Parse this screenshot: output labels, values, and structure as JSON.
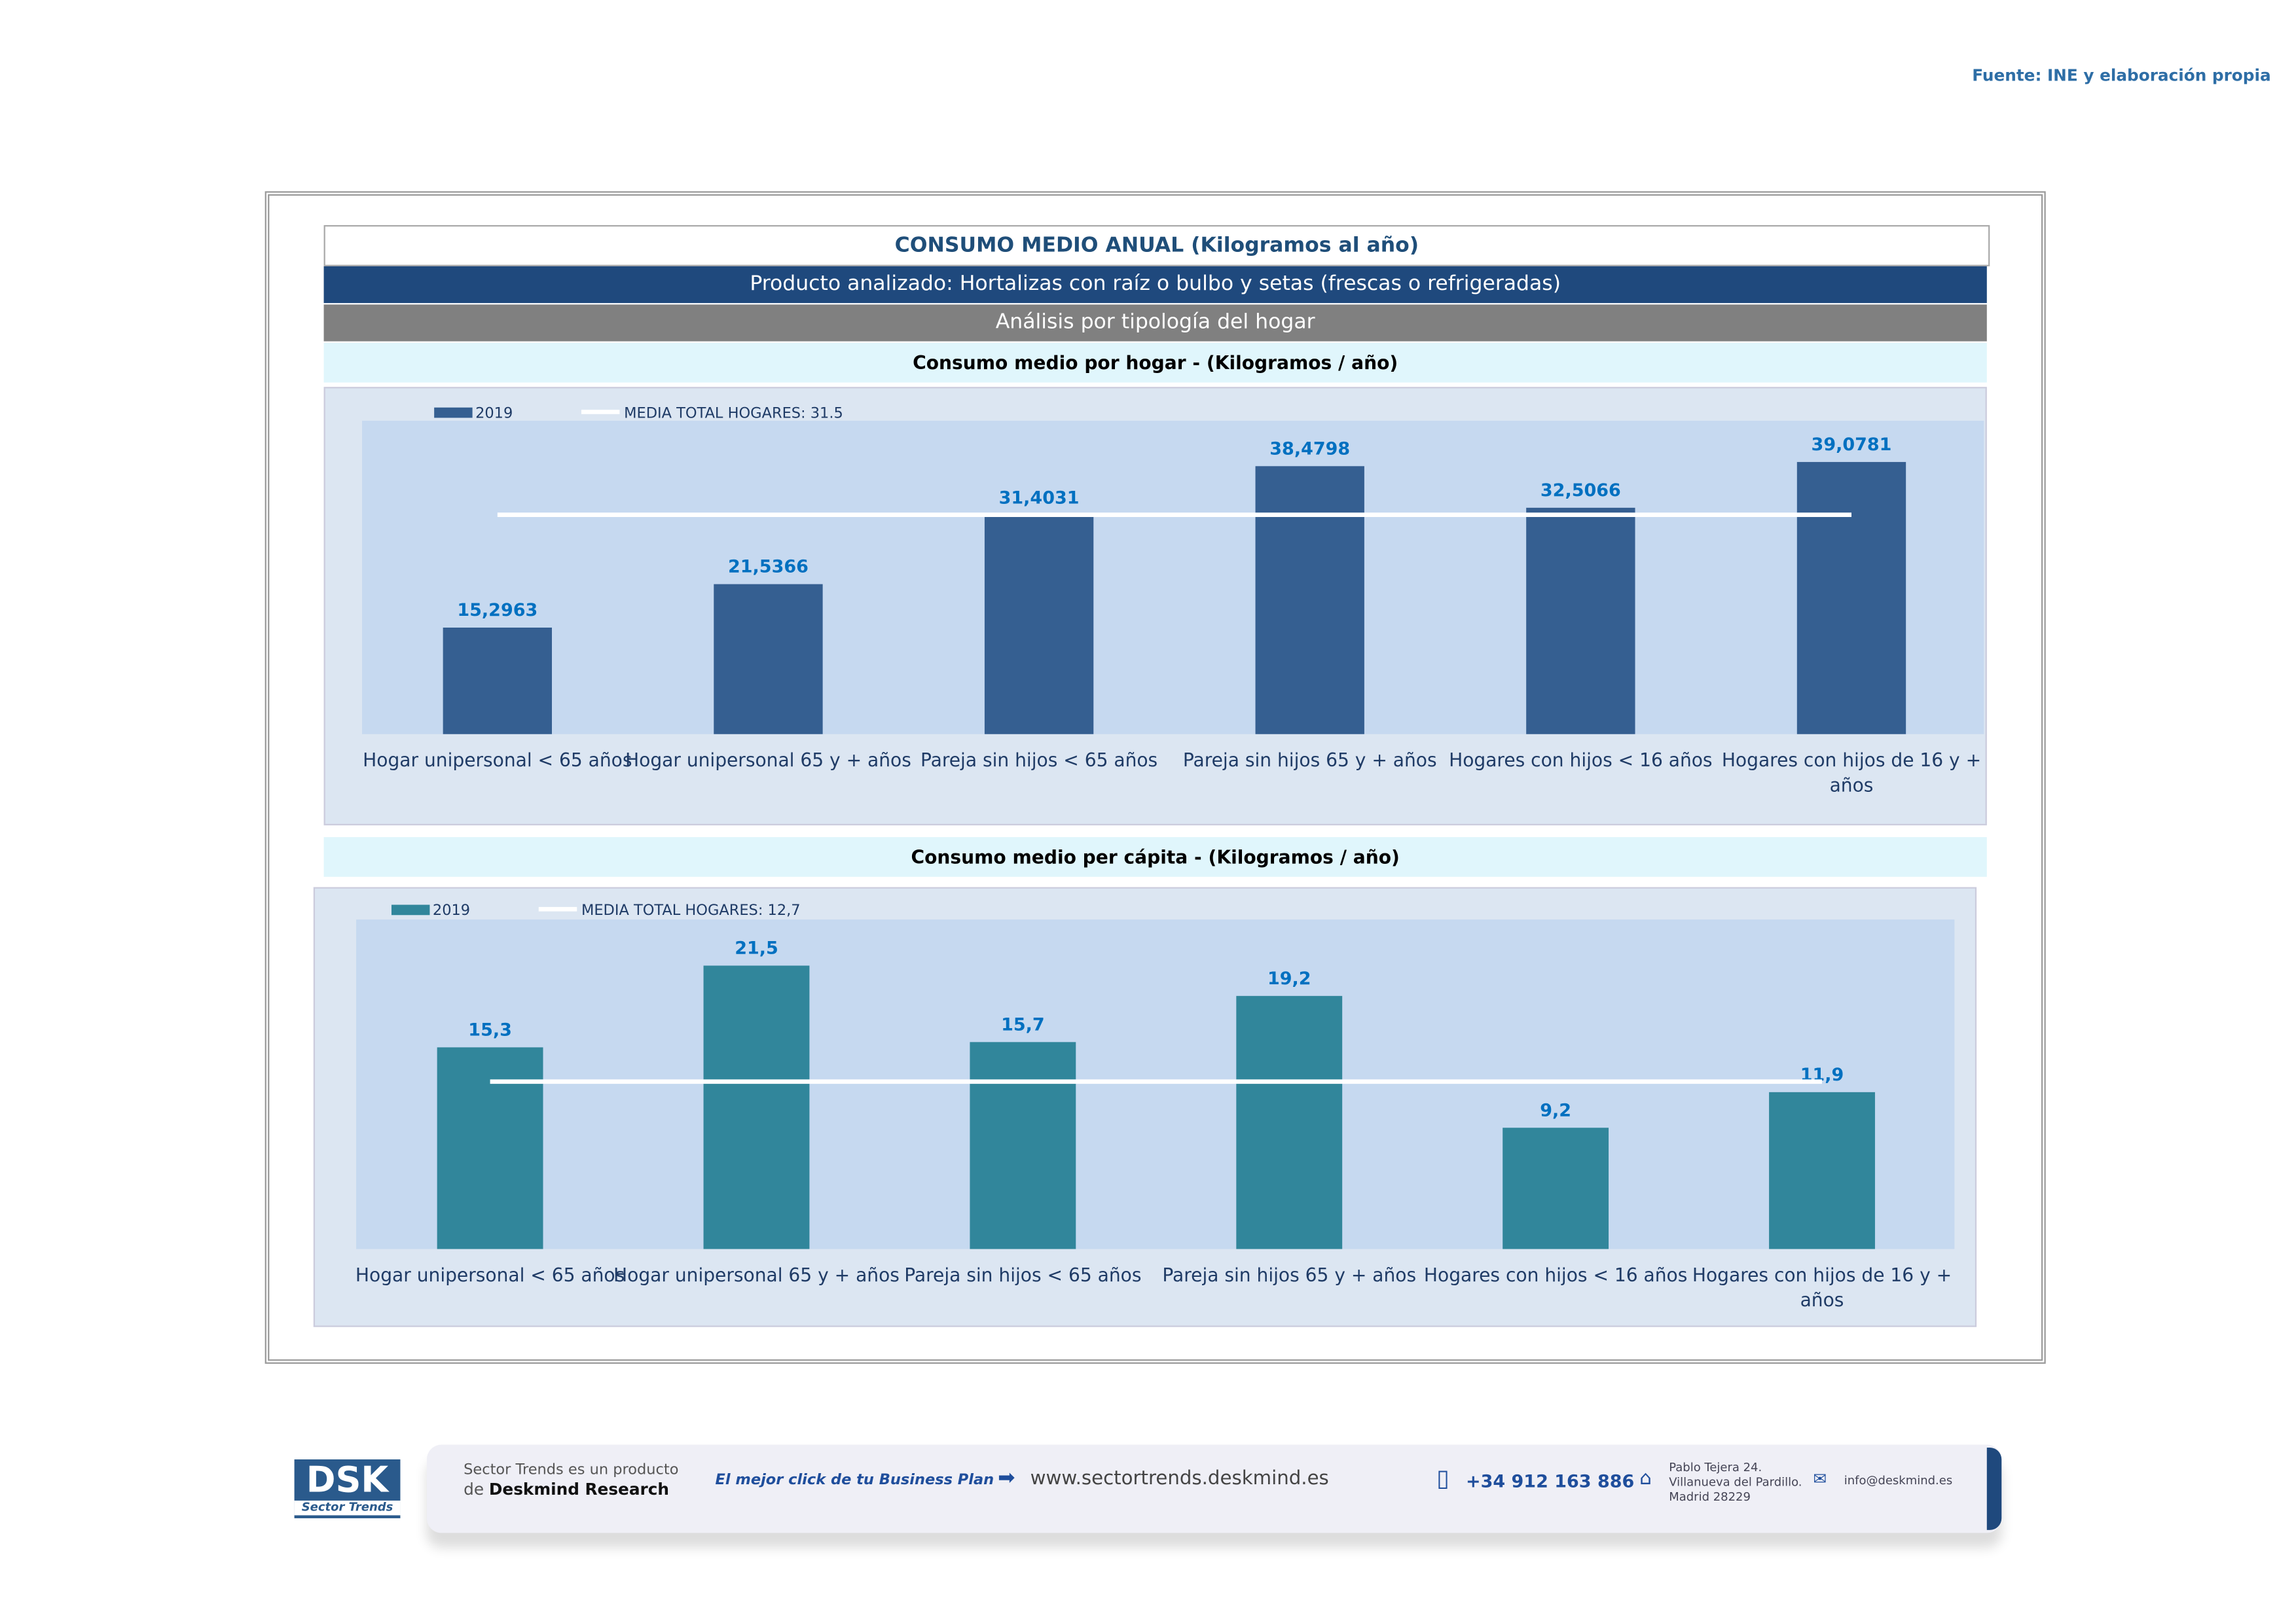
{
  "source": "Fuente: INE y elaboración propia",
  "header": {
    "title": "CONSUMO MEDIO ANUAL (Kilogramos al año)",
    "product": "Producto analizado: Hortalizas con raíz o bulbo y setas (frescas o refrigeradas)",
    "analysis": "Análisis por tipología del hogar"
  },
  "colors": {
    "bar1": "#355f91",
    "bar2": "#31869b",
    "label": "#0070c0",
    "plot": "#c6d9f0"
  },
  "chart_data": [
    {
      "type": "bar",
      "title": "Consumo medio por hogar -  (Kilogramos / año)",
      "categories": [
        "Hogar unipersonal < 65 años",
        "Hogar unipersonal  65 y + años",
        "Pareja sin hijos < 65 años",
        "Pareja sin hijos 65 y + años",
        "Hogares con hijos < 16 años",
        "Hogares con hijos de 16 y + años"
      ],
      "series": [
        {
          "name": "2019",
          "values": [
            15.2963,
            21.5366,
            31.4031,
            38.4798,
            32.5066,
            39.0781
          ]
        }
      ],
      "value_labels": [
        "15,2963",
        "21,5366",
        "31,4031",
        "38,4798",
        "32,5066",
        "39,0781"
      ],
      "reference_line": {
        "name": "MEDIA TOTAL  HOGARES:   31.5",
        "value": 31.5
      },
      "ylim": [
        0,
        45
      ],
      "legend": "top-left"
    },
    {
      "type": "bar",
      "title": "Consumo medio per cápita -  (Kilogramos / año)",
      "categories": [
        "Hogar unipersonal < 65 años",
        "Hogar unipersonal  65 y + años",
        "Pareja sin hijos < 65 años",
        "Pareja sin hijos 65 y + años",
        "Hogares con hijos < 16 años",
        "Hogares con hijos de 16 y + años"
      ],
      "series": [
        {
          "name": "2019",
          "values": [
            15.3,
            21.5,
            15.7,
            19.2,
            9.2,
            11.9
          ]
        }
      ],
      "value_labels": [
        "15,3",
        "21,5",
        "15,7",
        "19,2",
        "9,2",
        "11,9"
      ],
      "reference_line": {
        "name": "MEDIA TOTAL  HOGARES:   12,7",
        "value": 12.7
      },
      "ylim": [
        0,
        25
      ],
      "legend": "top-left"
    }
  ],
  "footer": {
    "logo": "DSK",
    "logo_sub": "Sector Trends",
    "line1": "Sector Trends es un producto",
    "line2_pre": "de ",
    "line2_brand": "Deskmind Research",
    "slogan": "El mejor click de tu Business Plan",
    "web": "www.sectortrends.deskmind.es",
    "phone": "+34 912 163 886",
    "addr1": "Pablo Tejera 24.",
    "addr2": "Villanueva del Pardillo.",
    "addr3": "Madrid 28229",
    "email": "info@deskmind.es"
  }
}
